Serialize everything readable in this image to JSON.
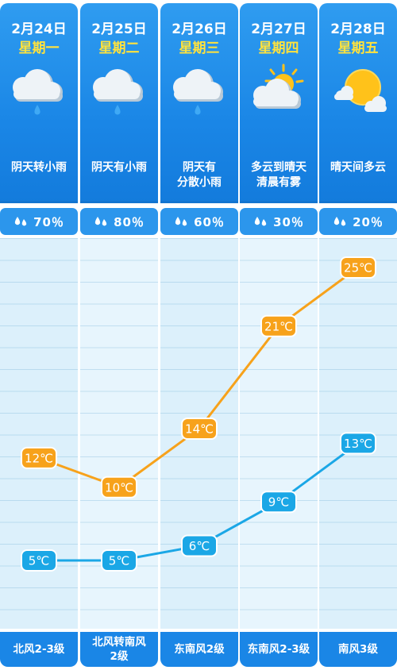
{
  "days": [
    {
      "date": "2月24日",
      "weekday": "星期一",
      "weather": [
        "阴天转小雨"
      ],
      "icon": "rain-cloud-icon",
      "rain_chance": "70％",
      "wind": [
        "北风2-3级"
      ]
    },
    {
      "date": "2月25日",
      "weekday": "星期二",
      "weather": [
        "阴天有小雨"
      ],
      "icon": "rain-cloud-icon",
      "rain_chance": "80％",
      "wind": [
        "北风转南风",
        "2级"
      ]
    },
    {
      "date": "2月26日",
      "weekday": "星期三",
      "weather": [
        "阴天有",
        "分散小雨"
      ],
      "icon": "rain-cloud-icon",
      "rain_chance": "60％",
      "wind": [
        "东南风2级"
      ]
    },
    {
      "date": "2月27日",
      "weekday": "星期四",
      "weather": [
        "多云到晴天",
        "清晨有雾"
      ],
      "icon": "sun-behind-cloud-icon",
      "rain_chance": "30％",
      "wind": [
        "东南风2-3级"
      ]
    },
    {
      "date": "2月28日",
      "weekday": "星期五",
      "weather": [
        "晴天间多云"
      ],
      "icon": "sun-with-small-cloud-icon",
      "rain_chance": "20％",
      "wind": [
        "南风3级"
      ]
    }
  ],
  "colors": {
    "header_blue": "#1a86e6",
    "high_line": "#f7a21b",
    "low_line": "#1ba7e6",
    "weekday_yellow": "#ffe23d"
  },
  "chart_data": {
    "type": "line",
    "categories": [
      "2月24日",
      "2月25日",
      "2月26日",
      "2月27日",
      "2月28日"
    ],
    "unit": "℃",
    "series": [
      {
        "values": [
          12,
          10,
          14,
          21,
          25
        ],
        "labels": [
          "12℃",
          "10℃",
          "14℃",
          "21℃",
          "25℃"
        ]
      },
      {
        "values": [
          5,
          5,
          6,
          9,
          13
        ],
        "labels": [
          "5℃",
          "5℃",
          "6℃",
          "9℃",
          "13℃"
        ]
      }
    ],
    "ylim": [
      2,
      28
    ],
    "grid": true,
    "legend": "none"
  }
}
